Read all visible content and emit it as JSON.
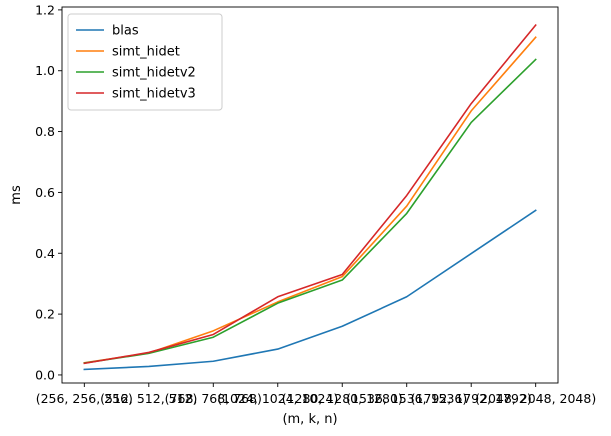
{
  "chart_data": {
    "type": "line",
    "xlabel": "(m, k, n)",
    "ylabel": "ms",
    "ylim": [
      -0.0265,
      1.2095
    ],
    "yticks": [
      0.0,
      0.2,
      0.4,
      0.6,
      0.8,
      1.0,
      1.2
    ],
    "ytick_labels": [
      "0.0",
      "0.2",
      "0.4",
      "0.6",
      "0.8",
      "1.0",
      "1.2"
    ],
    "categories": [
      "(256, 256, 256)",
      "(512, 512, 512)",
      "(768, 768, 768)",
      "(1024, 1024, 1024)",
      "(1280, 1280, 1280)",
      "(1536, 1536, 1536)",
      "(1792, 1792, 1792)",
      "(2048, 2048, 2048)"
    ],
    "legend_position": "top-left",
    "grid": false,
    "series": [
      {
        "name": "blas",
        "color": "#1f77b4",
        "values": [
          0.018,
          0.028,
          0.045,
          0.085,
          0.16,
          0.257,
          0.399,
          0.541
        ]
      },
      {
        "name": "simt_hidet",
        "color": "#ff7f0e",
        "values": [
          0.04,
          0.072,
          0.145,
          0.24,
          0.323,
          0.555,
          0.868,
          1.11
        ]
      },
      {
        "name": "simt_hidetv2",
        "color": "#2ca02c",
        "values": [
          0.039,
          0.071,
          0.124,
          0.236,
          0.312,
          0.531,
          0.83,
          1.037
        ]
      },
      {
        "name": "simt_hidetv3",
        "color": "#d62728",
        "values": [
          0.038,
          0.074,
          0.133,
          0.257,
          0.33,
          0.59,
          0.892,
          1.15
        ]
      }
    ]
  }
}
